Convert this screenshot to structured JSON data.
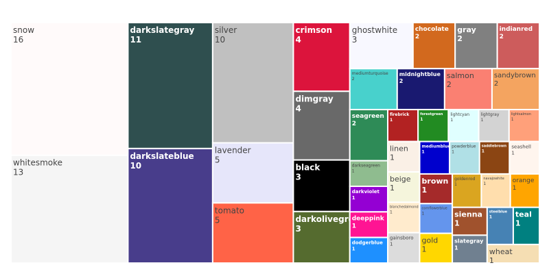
{
  "chart_data": {
    "type": "treemap",
    "title": "",
    "text_colors": {
      "dark": "#444444",
      "light": "#ffffff"
    },
    "items": [
      {
        "name": "snow",
        "value": 16,
        "color": "#fffafa"
      },
      {
        "name": "whitesmoke",
        "value": 13,
        "color": "#f5f5f5"
      },
      {
        "name": "darkslategray",
        "value": 11,
        "color": "#2f4f4f"
      },
      {
        "name": "darkslateblue",
        "value": 10,
        "color": "#483d8b"
      },
      {
        "name": "silver",
        "value": 10,
        "color": "#c0c0c0"
      },
      {
        "name": "lavender",
        "value": 5,
        "color": "#e6e6fa"
      },
      {
        "name": "tomato",
        "value": 5,
        "color": "#ff6347"
      },
      {
        "name": "crimson",
        "value": 4,
        "color": "#dc143c"
      },
      {
        "name": "dimgray",
        "value": 4,
        "color": "#696969"
      },
      {
        "name": "black",
        "value": 3,
        "color": "#000000"
      },
      {
        "name": "darkolivegreen",
        "value": 3,
        "color": "#556b2f"
      },
      {
        "name": "ghostwhite",
        "value": 3,
        "color": "#f8f8ff"
      },
      {
        "name": "chocolate",
        "value": 2,
        "color": "#d2691e"
      },
      {
        "name": "gray",
        "value": 2,
        "color": "#808080"
      },
      {
        "name": "indianred",
        "value": 2,
        "color": "#cd5c5c"
      },
      {
        "name": "mediumturquoise",
        "value": 2,
        "color": "#48d1cc"
      },
      {
        "name": "midnightblue",
        "value": 2,
        "color": "#191970"
      },
      {
        "name": "salmon",
        "value": 2,
        "color": "#fa8072"
      },
      {
        "name": "sandybrown",
        "value": 2,
        "color": "#f4a460"
      },
      {
        "name": "seagreen",
        "value": 2,
        "color": "#2e8b57"
      },
      {
        "name": "darkseagreen",
        "value": 1,
        "color": "#8fbc8f"
      },
      {
        "name": "darkviolet",
        "value": 1,
        "color": "#9400d3"
      },
      {
        "name": "deeppink",
        "value": 1,
        "color": "#ff1493"
      },
      {
        "name": "dodgerblue",
        "value": 1,
        "color": "#1e90ff"
      },
      {
        "name": "firebrick",
        "value": 1,
        "color": "#b22222"
      },
      {
        "name": "forestgreen",
        "value": 1,
        "color": "#228b22"
      },
      {
        "name": "lightcyan",
        "value": 1,
        "color": "#e0ffff"
      },
      {
        "name": "lightgray",
        "value": 1,
        "color": "#d3d3d3"
      },
      {
        "name": "lightsalmon",
        "value": 1,
        "color": "#ffa07a"
      },
      {
        "name": "linen",
        "value": 1,
        "color": "#faf0e6"
      },
      {
        "name": "beige",
        "value": 1,
        "color": "#f5f5dc"
      },
      {
        "name": "blanchedalmond",
        "value": 1,
        "color": "#ffebcd"
      },
      {
        "name": "gainsboro",
        "value": 1,
        "color": "#dcdcdc"
      },
      {
        "name": "mediumblue",
        "value": 1,
        "color": "#0000cd"
      },
      {
        "name": "powderblue",
        "value": 1,
        "color": "#b0e0e6"
      },
      {
        "name": "saddlebrown",
        "value": 1,
        "color": "#8b4513"
      },
      {
        "name": "seashell",
        "value": 1,
        "color": "#fff5ee"
      },
      {
        "name": "brown",
        "value": 1,
        "color": "#a52a2a"
      },
      {
        "name": "cornflowerblue",
        "value": 1,
        "color": "#6495ed"
      },
      {
        "name": "gold",
        "value": 1,
        "color": "#ffd700"
      },
      {
        "name": "goldenrod",
        "value": 1,
        "color": "#daa520"
      },
      {
        "name": "navajowhite",
        "value": 1,
        "color": "#ffdead"
      },
      {
        "name": "orange",
        "value": 1,
        "color": "#ffa500"
      },
      {
        "name": "sienna",
        "value": 1,
        "color": "#a0522d"
      },
      {
        "name": "slategray",
        "value": 1,
        "color": "#708090"
      },
      {
        "name": "steelblue",
        "value": 1,
        "color": "#4682b4"
      },
      {
        "name": "teal",
        "value": 1,
        "color": "#008080"
      },
      {
        "name": "wheat",
        "value": 1,
        "color": "#f5deb3"
      }
    ]
  }
}
